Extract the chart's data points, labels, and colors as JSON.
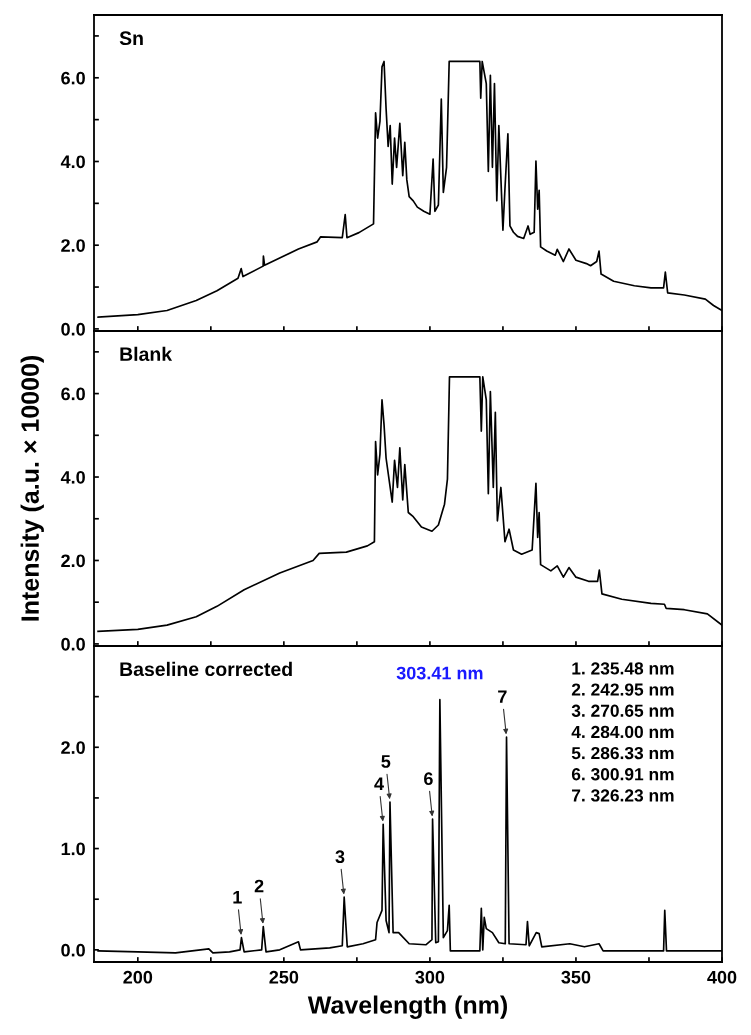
{
  "chart_data": [
    {
      "type": "line",
      "title": "Sn",
      "xlim": [
        185,
        400
      ],
      "ylim": [
        -0.05,
        7.5
      ],
      "tick_labels": "y",
      "grid": false,
      "legend": false,
      "xticks": [
        {
          "value": 200,
          "label": null
        },
        {
          "value": 225,
          "label": null
        },
        {
          "value": 250,
          "label": null
        },
        {
          "value": 275,
          "label": null
        },
        {
          "value": 300,
          "label": null
        },
        {
          "value": 325,
          "label": null
        },
        {
          "value": 350,
          "label": null
        },
        {
          "value": 375,
          "label": null
        },
        {
          "value": 400,
          "label": null
        }
      ],
      "yticks": [
        {
          "value": 0,
          "label": "0.0"
        },
        {
          "value": 1,
          "label": null
        },
        {
          "value": 2,
          "label": "2.0"
        },
        {
          "value": 3,
          "label": null
        },
        {
          "value": 4,
          "label": "4.0"
        },
        {
          "value": 5,
          "label": null
        },
        {
          "value": 6,
          "label": "6.0"
        },
        {
          "value": 7,
          "label": null
        }
      ],
      "series": [
        {
          "color": "#000000",
          "x": [
            186.4,
            200,
            210,
            220,
            227.1,
            234.3,
            235.4,
            236,
            242.9,
            243,
            243.4,
            250,
            255,
            261.4,
            262.6,
            270,
            271,
            271.6,
            275.7,
            280.7,
            281.4,
            282.1,
            282.9,
            283.6,
            284.3,
            285,
            285.7,
            286.4,
            287.1,
            287.9,
            288.6,
            289.7,
            290.7,
            291.4,
            292.1,
            292.9,
            294.3,
            295.7,
            297.9,
            300,
            301.1,
            301.7,
            302.9,
            303.9,
            304.6,
            305.7,
            306.6,
            317.1,
            317.4,
            317.9,
            319.3,
            320,
            320.7,
            321.4,
            322.1,
            322.9,
            323.6,
            325,
            325.7,
            326.7,
            327.4,
            328.6,
            330,
            332.1,
            333.6,
            334.3,
            335.7,
            336.3,
            336.9,
            337.4,
            337.9,
            340,
            342.9,
            343.6,
            345.7,
            347.6,
            350,
            353.6,
            355,
            357.1,
            357.9,
            358.6,
            362.9,
            370,
            375.7,
            380,
            380.6,
            381.4,
            387.1,
            394.3,
            397.1,
            400
          ],
          "values": [
            0.28,
            0.34,
            0.44,
            0.68,
            0.91,
            1.21,
            1.44,
            1.25,
            1.5,
            1.74,
            1.52,
            1.74,
            1.91,
            2.08,
            2.2,
            2.18,
            2.73,
            2.18,
            2.3,
            2.51,
            5.16,
            4.56,
            4.96,
            6.26,
            6.39,
            5.26,
            4.36,
            4.86,
            3.46,
            4.56,
            3.86,
            4.91,
            3.66,
            4.46,
            3.56,
            3.16,
            3.06,
            2.91,
            2.81,
            2.74,
            4.06,
            2.81,
            2.96,
            5.49,
            3.26,
            3.86,
            6.39,
            6.39,
            5.51,
            6.39,
            5.86,
            3.76,
            6.06,
            3.86,
            5.86,
            3.06,
            4.86,
            2.36,
            3.36,
            4.66,
            2.46,
            2.31,
            2.21,
            2.16,
            2.46,
            2.26,
            2.31,
            4.01,
            2.86,
            3.31,
            1.96,
            1.86,
            1.76,
            1.9,
            1.61,
            1.91,
            1.64,
            1.56,
            1.51,
            1.61,
            1.86,
            1.31,
            1.14,
            1.03,
            0.98,
            0.98,
            1.36,
            0.86,
            0.81,
            0.71,
            0.56,
            0.44
          ]
        }
      ]
    },
    {
      "type": "line",
      "title": "Blank",
      "ylabel": "Intensity (a.u. × 10000)",
      "xlim": [
        185,
        400
      ],
      "ylim": [
        -0.05,
        7.5
      ],
      "tick_labels": "y",
      "grid": false,
      "legend": false,
      "xticks": [
        {
          "value": 200,
          "label": null
        },
        {
          "value": 225,
          "label": null
        },
        {
          "value": 250,
          "label": null
        },
        {
          "value": 275,
          "label": null
        },
        {
          "value": 300,
          "label": null
        },
        {
          "value": 325,
          "label": null
        },
        {
          "value": 350,
          "label": null
        },
        {
          "value": 375,
          "label": null
        },
        {
          "value": 400,
          "label": null
        }
      ],
      "yticks": [
        {
          "value": 0,
          "label": "0.0"
        },
        {
          "value": 1,
          "label": null
        },
        {
          "value": 2,
          "label": "2.0"
        },
        {
          "value": 3,
          "label": null
        },
        {
          "value": 4,
          "label": "4.0"
        },
        {
          "value": 5,
          "label": null
        },
        {
          "value": 6,
          "label": "6.0"
        },
        {
          "value": 7,
          "label": null
        }
      ],
      "series": [
        {
          "color": "#000000",
          "x": [
            186.4,
            200,
            210,
            220,
            227.1,
            236.4,
            248.6,
            260,
            262.1,
            271.4,
            278.6,
            281,
            281.4,
            282.1,
            282.9,
            283.6,
            284.3,
            285,
            286,
            287.1,
            287.9,
            288.9,
            289.7,
            290.7,
            291.4,
            292.6,
            294.3,
            297.1,
            300.7,
            302.9,
            305,
            306,
            306.7,
            317.1,
            317.6,
            318.1,
            319.3,
            320,
            320.7,
            321.7,
            322.4,
            323.1,
            324.3,
            325.7,
            327.1,
            328.6,
            331.4,
            335,
            336.3,
            336.9,
            337.4,
            337.9,
            341.4,
            343.6,
            345.7,
            347.6,
            350,
            354.3,
            357.4,
            358,
            358.9,
            365.7,
            375.7,
            380.3,
            380.9,
            387.1,
            395,
            400
          ],
          "values": [
            0.3,
            0.35,
            0.45,
            0.65,
            0.9,
            1.3,
            1.7,
            2.0,
            2.17,
            2.2,
            2.35,
            2.45,
            4.85,
            4.05,
            4.55,
            5.85,
            5.25,
            4.45,
            3.95,
            3.4,
            4.4,
            3.75,
            4.7,
            3.45,
            4.3,
            3.15,
            3.05,
            2.8,
            2.7,
            2.85,
            3.35,
            3.95,
            6.4,
            6.4,
            5.1,
            6.4,
            5.85,
            3.6,
            6.05,
            3.75,
            5.55,
            2.95,
            3.75,
            2.45,
            2.75,
            2.25,
            2.15,
            2.25,
            3.85,
            2.55,
            3.15,
            1.9,
            1.75,
            1.87,
            1.6,
            1.83,
            1.6,
            1.5,
            1.5,
            1.77,
            1.2,
            1.07,
            0.97,
            0.95,
            0.85,
            0.82,
            0.72,
            0.45
          ]
        }
      ]
    },
    {
      "type": "line",
      "title": "Baseline corrected",
      "xlabel": "Wavelength (nm)",
      "xlim": [
        185,
        400
      ],
      "ylim": [
        -0.12,
        3.0
      ],
      "grid": false,
      "legend": false,
      "xticks": [
        200,
        {
          "value": 225,
          "label": null
        },
        250,
        {
          "value": 275,
          "label": null
        },
        300,
        {
          "value": 325,
          "label": null
        },
        350,
        {
          "value": 375,
          "label": null
        },
        400
      ],
      "yticks": [
        {
          "value": 0,
          "label": "0.0"
        },
        {
          "value": 0.5,
          "label": null
        },
        {
          "value": 1,
          "label": "1.0"
        },
        {
          "value": 1.5,
          "label": null
        },
        {
          "value": 2,
          "label": "2.0"
        },
        {
          "value": 2.5,
          "label": null
        }
      ],
      "series": [
        {
          "color": "#000000",
          "x": [
            186.4,
            200,
            212.9,
            224.3,
            225.7,
            231.4,
            235,
            235.48,
            236.4,
            242.4,
            242.95,
            243.9,
            248.6,
            255,
            255.7,
            265.7,
            270,
            270.65,
            271.7,
            277.1,
            281.4,
            281.9,
            283.6,
            284.0,
            285,
            286,
            286.33,
            287.4,
            289.3,
            292.9,
            298.6,
            300.7,
            300.91,
            302,
            302.9,
            303.41,
            304.6,
            306,
            306.6,
            307,
            317.1,
            317.6,
            318.1,
            318.6,
            319.3,
            321.4,
            323.6,
            325.8,
            326.23,
            327.1,
            332.9,
            333.4,
            334,
            336.4,
            337.4,
            338.3,
            347.9,
            352.9,
            357.9,
            359.3,
            380,
            380.4,
            381,
            400
          ],
          "values": [
            -0.01,
            -0.02,
            -0.03,
            0.01,
            -0.03,
            -0.02,
            0.0,
            0.12,
            -0.02,
            0.0,
            0.23,
            -0.02,
            0.0,
            0.08,
            0.0,
            0.02,
            0.04,
            0.52,
            0.03,
            0.06,
            0.1,
            0.27,
            0.39,
            1.24,
            0.29,
            0.17,
            1.46,
            0.17,
            0.17,
            0.06,
            0.05,
            0.1,
            1.29,
            0.07,
            0.08,
            2.47,
            0.12,
            0.19,
            0.44,
            -0.01,
            -0.01,
            0.41,
            0.0,
            0.32,
            0.21,
            0.17,
            0.07,
            0.06,
            2.1,
            0.06,
            0.05,
            0.28,
            0.04,
            0.17,
            0.16,
            0.03,
            0.06,
            0.03,
            0.06,
            -0.01,
            -0.01,
            0.39,
            -0.01,
            -0.01
          ]
        }
      ],
      "annotations": [
        {
          "text": "303.41 nm",
          "x": 303.41,
          "y": 2.47
        },
        {
          "text": "1",
          "x": 235.48,
          "y": 0.12
        },
        {
          "text": "2",
          "x": 242.95,
          "y": 0.23
        },
        {
          "text": "3",
          "x": 270.65,
          "y": 0.52
        },
        {
          "text": "4",
          "x": 284.0,
          "y": 1.24
        },
        {
          "text": "5",
          "x": 286.33,
          "y": 1.46
        },
        {
          "text": "6",
          "x": 300.91,
          "y": 1.29
        },
        {
          "text": "7",
          "x": 326.23,
          "y": 2.1
        },
        "1. 235.48 nm",
        "2. 242.95 nm",
        "3. 270.65 nm",
        "4. 284.00 nm",
        "5. 286.33 nm",
        "6. 300.91 nm",
        "7. 326.23 nm"
      ]
    }
  ]
}
